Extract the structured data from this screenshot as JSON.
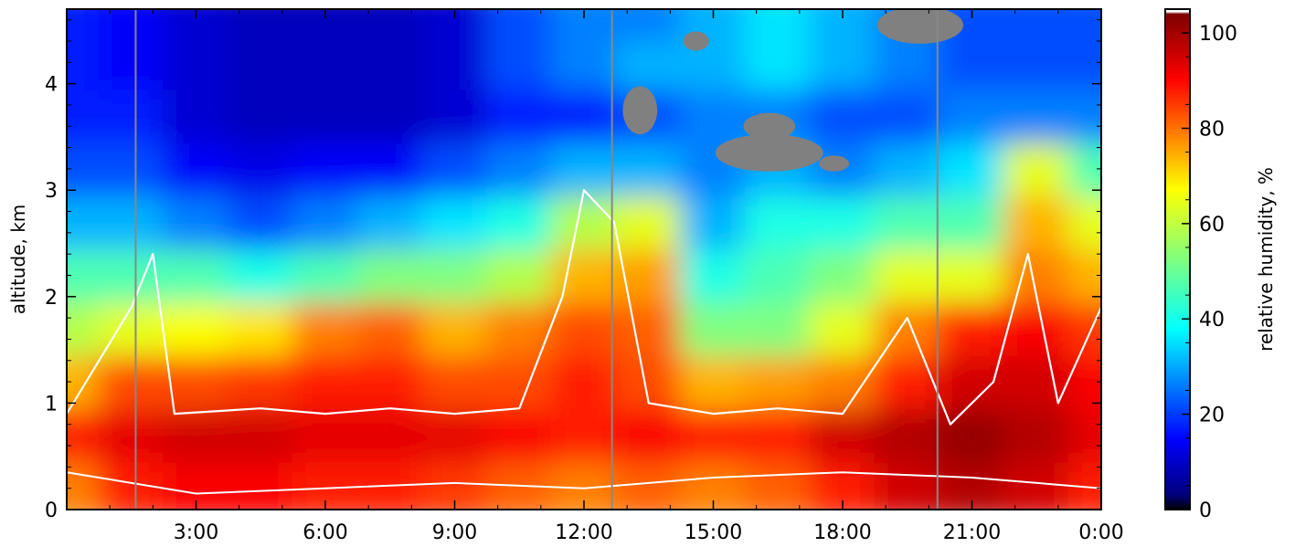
{
  "chart_data": {
    "type": "heatmap",
    "title": "",
    "xlabel": "",
    "ylabel": "altitude, km",
    "colorbar_label": "relative humidity, %",
    "x_range_hours": [
      0,
      24
    ],
    "xlim": [
      0,
      24
    ],
    "ylim": [
      0,
      4.7
    ],
    "x_ticks": [
      {
        "value": 3,
        "label": "3:00"
      },
      {
        "value": 6,
        "label": "6:00"
      },
      {
        "value": 9,
        "label": "9:00"
      },
      {
        "value": 12,
        "label": "12:00"
      },
      {
        "value": 15,
        "label": "15:00"
      },
      {
        "value": 18,
        "label": "18:00"
      },
      {
        "value": 21,
        "label": "21:00"
      },
      {
        "value": 24,
        "label": "0:00"
      }
    ],
    "y_ticks": [
      {
        "value": 0,
        "label": "0"
      },
      {
        "value": 1,
        "label": "1"
      },
      {
        "value": 2,
        "label": "2"
      },
      {
        "value": 3,
        "label": "3"
      },
      {
        "value": 4,
        "label": "4"
      }
    ],
    "colorbar_range": [
      0,
      105
    ],
    "colorbar_ticks": [
      {
        "value": 0,
        "label": "0"
      },
      {
        "value": 20,
        "label": "20"
      },
      {
        "value": 40,
        "label": "40"
      },
      {
        "value": 60,
        "label": "60"
      },
      {
        "value": 80,
        "label": "80"
      },
      {
        "value": 100,
        "label": "100"
      }
    ],
    "colormap": "jet",
    "no_data_color": "#808080",
    "contour_color": "#ffffff",
    "vertical_markers_hours": [
      1.6,
      12.65,
      20.2
    ],
    "vertical_marker_color": "#888888",
    "humidity_profile_hours": [
      0,
      1.5,
      3,
      4.5,
      6,
      7.5,
      9,
      10.5,
      12,
      13.5,
      15,
      16.5,
      18,
      19.5,
      21,
      22.5,
      24
    ],
    "humidity_profile_altitudes_km": [
      0.2,
      0.7,
      1.2,
      1.7,
      2.2,
      2.7,
      3.2,
      3.7,
      4.2,
      4.6
    ],
    "humidity_profile_values": [
      [
        75,
        85,
        70,
        55,
        45,
        30,
        20,
        15,
        15,
        15
      ],
      [
        85,
        90,
        80,
        60,
        45,
        30,
        20,
        15,
        12,
        12
      ],
      [
        88,
        92,
        80,
        62,
        45,
        25,
        12,
        8,
        8,
        8
      ],
      [
        88,
        92,
        82,
        65,
        40,
        20,
        10,
        6,
        6,
        6
      ],
      [
        85,
        90,
        85,
        75,
        45,
        25,
        12,
        6,
        6,
        6
      ],
      [
        85,
        90,
        85,
        78,
        50,
        30,
        12,
        6,
        6,
        6
      ],
      [
        82,
        90,
        80,
        70,
        50,
        35,
        20,
        8,
        8,
        8
      ],
      [
        78,
        88,
        80,
        75,
        55,
        40,
        25,
        15,
        20,
        20
      ],
      [
        75,
        85,
        85,
        80,
        70,
        55,
        30,
        15,
        25,
        25
      ],
      [
        78,
        88,
        80,
        78,
        72,
        60,
        30,
        20,
        30,
        25
      ],
      [
        75,
        85,
        70,
        50,
        40,
        30,
        25,
        25,
        30,
        30
      ],
      [
        78,
        85,
        72,
        50,
        45,
        40,
        30,
        25,
        35,
        35
      ],
      [
        85,
        92,
        75,
        60,
        50,
        40,
        25,
        20,
        30,
        30
      ],
      [
        92,
        95,
        85,
        75,
        60,
        45,
        30,
        20,
        25,
        25
      ],
      [
        95,
        98,
        92,
        85,
        60,
        45,
        35,
        25,
        20,
        20
      ],
      [
        92,
        95,
        92,
        88,
        75,
        70,
        60,
        25,
        20,
        20
      ],
      [
        85,
        90,
        88,
        82,
        70,
        60,
        45,
        25,
        20,
        20
      ]
    ]
  }
}
